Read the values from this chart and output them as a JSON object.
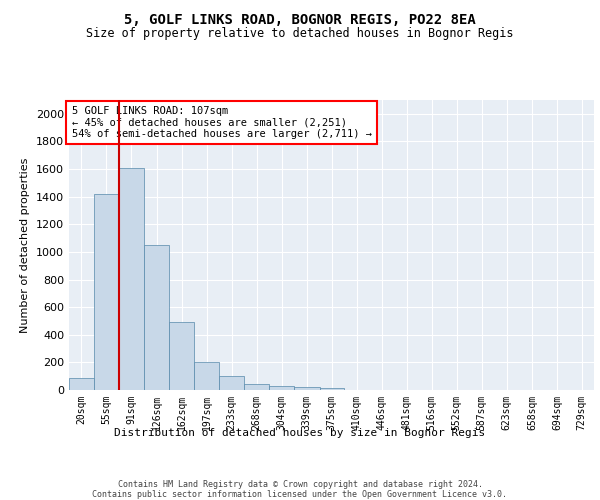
{
  "title1": "5, GOLF LINKS ROAD, BOGNOR REGIS, PO22 8EA",
  "title2": "Size of property relative to detached houses in Bognor Regis",
  "xlabel": "Distribution of detached houses by size in Bognor Regis",
  "ylabel": "Number of detached properties",
  "bar_color": "#c8d8e8",
  "bar_edge_color": "#5588aa",
  "bg_color": "#e8eef5",
  "grid_color": "#ffffff",
  "annotation_text": "5 GOLF LINKS ROAD: 107sqm\n← 45% of detached houses are smaller (2,251)\n54% of semi-detached houses are larger (2,711) →",
  "vline_color": "#cc0000",
  "vline_x_index": 2,
  "categories": [
    "20sqm",
    "55sqm",
    "91sqm",
    "126sqm",
    "162sqm",
    "197sqm",
    "233sqm",
    "268sqm",
    "304sqm",
    "339sqm",
    "375sqm",
    "410sqm",
    "446sqm",
    "481sqm",
    "516sqm",
    "552sqm",
    "587sqm",
    "623sqm",
    "658sqm",
    "694sqm",
    "729sqm"
  ],
  "bin_edges": [
    20,
    55,
    91,
    126,
    162,
    197,
    233,
    268,
    304,
    339,
    375,
    410,
    446,
    481,
    516,
    552,
    587,
    623,
    658,
    694,
    729,
    764
  ],
  "values": [
    90,
    1420,
    1610,
    1050,
    490,
    205,
    105,
    40,
    27,
    20,
    15,
    0,
    0,
    0,
    0,
    0,
    0,
    0,
    0,
    0,
    0
  ],
  "ylim": [
    0,
    2100
  ],
  "yticks": [
    0,
    200,
    400,
    600,
    800,
    1000,
    1200,
    1400,
    1600,
    1800,
    2000
  ],
  "footer1": "Contains HM Land Registry data © Crown copyright and database right 2024.",
  "footer2": "Contains public sector information licensed under the Open Government Licence v3.0."
}
